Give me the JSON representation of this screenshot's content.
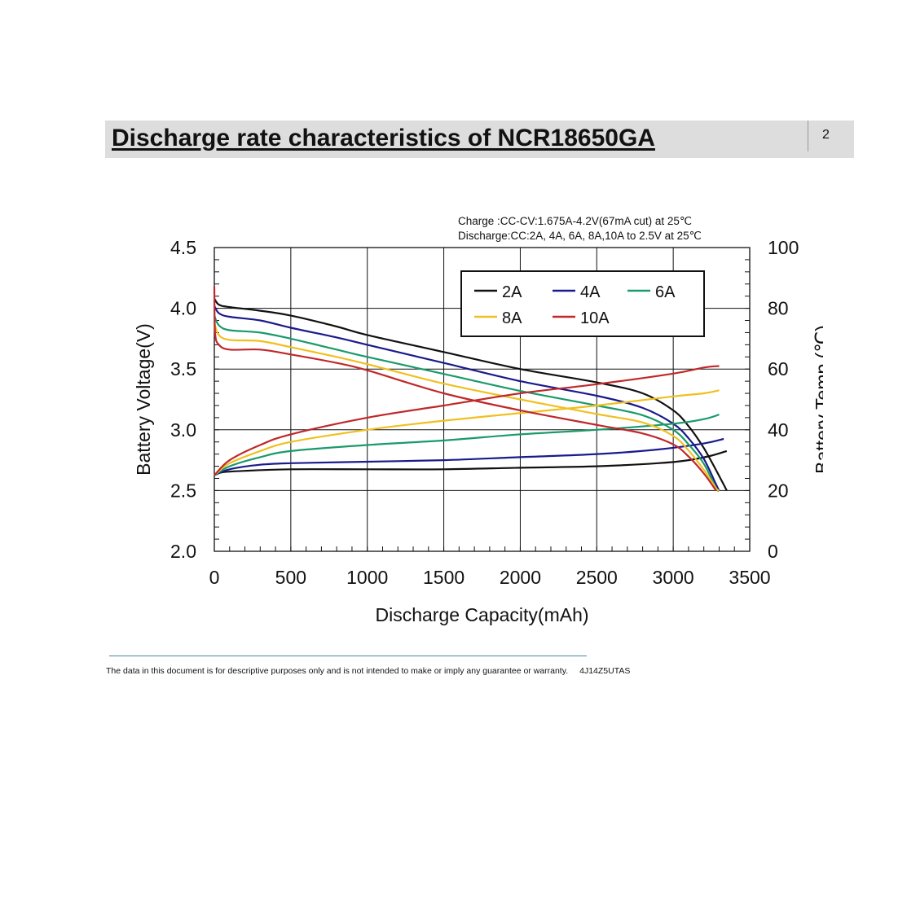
{
  "header": {
    "title": "Discharge rate characteristics of NCR18650GA",
    "page_number": "2"
  },
  "footer": {
    "disclaimer": "The data in this document is for descriptive purposes only and is not intended to make or imply any guarantee or warranty.",
    "code": "4J14Z5UTAS"
  },
  "chart_data": {
    "type": "line",
    "annotation": [
      "Charge :CC-CV:1.675A-4.2V(67mA cut) at 25℃",
      "Discharge:CC:2A, 4A, 6A, 8A,10A to 2.5V at 25℃"
    ],
    "xlabel": "Discharge Capacity(mAh)",
    "ylabel": "Battery Voltage(V)",
    "y2label": "Battery Temp.(℃)",
    "xlim": [
      0,
      3500
    ],
    "ylim": [
      2.0,
      4.5
    ],
    "y2lim": [
      0,
      100
    ],
    "xticks": [
      0,
      500,
      1000,
      1500,
      2000,
      2500,
      3000,
      3500
    ],
    "yticks": [
      2.0,
      2.5,
      3.0,
      3.5,
      4.0,
      4.5
    ],
    "yticklabels": [
      "2.0",
      "2.5",
      "3.0",
      "3.5",
      "4.0",
      "4.5"
    ],
    "y2ticks": [
      0,
      20,
      40,
      60,
      80,
      100
    ],
    "grid": true,
    "legend_position": "top-right",
    "series": [
      {
        "name": "2A",
        "color": "#111111",
        "voltage": [
          [
            0,
            4.08
          ],
          [
            30,
            4.03
          ],
          [
            100,
            4.01
          ],
          [
            300,
            3.98
          ],
          [
            500,
            3.94
          ],
          [
            800,
            3.85
          ],
          [
            1000,
            3.78
          ],
          [
            1500,
            3.64
          ],
          [
            2000,
            3.5
          ],
          [
            2500,
            3.39
          ],
          [
            2800,
            3.3
          ],
          [
            3000,
            3.16
          ],
          [
            3100,
            3.03
          ],
          [
            3200,
            2.85
          ],
          [
            3300,
            2.62
          ],
          [
            3350,
            2.5
          ]
        ],
        "temperature": [
          [
            0,
            25
          ],
          [
            50,
            26
          ],
          [
            200,
            26.5
          ],
          [
            500,
            27
          ],
          [
            1000,
            27
          ],
          [
            1500,
            27
          ],
          [
            2000,
            27.5
          ],
          [
            2500,
            28
          ],
          [
            2900,
            29
          ],
          [
            3100,
            30
          ],
          [
            3250,
            31.5
          ],
          [
            3350,
            33
          ]
        ]
      },
      {
        "name": "4A",
        "color": "#1a1a8c",
        "voltage": [
          [
            0,
            4.02
          ],
          [
            30,
            3.96
          ],
          [
            100,
            3.93
          ],
          [
            300,
            3.9
          ],
          [
            500,
            3.84
          ],
          [
            800,
            3.76
          ],
          [
            1000,
            3.7
          ],
          [
            1500,
            3.55
          ],
          [
            2000,
            3.4
          ],
          [
            2500,
            3.28
          ],
          [
            2800,
            3.18
          ],
          [
            3000,
            3.05
          ],
          [
            3100,
            2.93
          ],
          [
            3200,
            2.76
          ],
          [
            3280,
            2.55
          ],
          [
            3300,
            2.5
          ]
        ],
        "temperature": [
          [
            0,
            25
          ],
          [
            100,
            27
          ],
          [
            300,
            28.5
          ],
          [
            500,
            29
          ],
          [
            1000,
            29.5
          ],
          [
            1500,
            30
          ],
          [
            2000,
            31
          ],
          [
            2500,
            32
          ],
          [
            2900,
            33.5
          ],
          [
            3200,
            35.5
          ],
          [
            3330,
            37
          ]
        ]
      },
      {
        "name": "6A",
        "color": "#1a9a6a",
        "voltage": [
          [
            0,
            3.94
          ],
          [
            30,
            3.86
          ],
          [
            100,
            3.82
          ],
          [
            300,
            3.8
          ],
          [
            500,
            3.75
          ],
          [
            800,
            3.66
          ],
          [
            1000,
            3.6
          ],
          [
            1500,
            3.46
          ],
          [
            2000,
            3.32
          ],
          [
            2500,
            3.2
          ],
          [
            2800,
            3.12
          ],
          [
            3000,
            3.0
          ],
          [
            3100,
            2.88
          ],
          [
            3200,
            2.72
          ],
          [
            3280,
            2.52
          ],
          [
            3300,
            2.5
          ]
        ],
        "temperature": [
          [
            0,
            25
          ],
          [
            100,
            28
          ],
          [
            300,
            31
          ],
          [
            500,
            33
          ],
          [
            1000,
            35
          ],
          [
            1500,
            36.5
          ],
          [
            2000,
            38.5
          ],
          [
            2500,
            40
          ],
          [
            3000,
            42
          ],
          [
            3200,
            43.5
          ],
          [
            3300,
            45
          ]
        ]
      },
      {
        "name": "8A",
        "color": "#f0c020",
        "voltage": [
          [
            0,
            3.88
          ],
          [
            30,
            3.78
          ],
          [
            100,
            3.74
          ],
          [
            300,
            3.73
          ],
          [
            500,
            3.68
          ],
          [
            800,
            3.6
          ],
          [
            1000,
            3.54
          ],
          [
            1500,
            3.38
          ],
          [
            2000,
            3.25
          ],
          [
            2500,
            3.13
          ],
          [
            2800,
            3.06
          ],
          [
            3000,
            2.95
          ],
          [
            3100,
            2.83
          ],
          [
            3200,
            2.67
          ],
          [
            3280,
            2.52
          ],
          [
            3300,
            2.5
          ]
        ],
        "temperature": [
          [
            0,
            25
          ],
          [
            100,
            29
          ],
          [
            300,
            33
          ],
          [
            500,
            36
          ],
          [
            1000,
            40
          ],
          [
            1500,
            43
          ],
          [
            2000,
            45.5
          ],
          [
            2500,
            48
          ],
          [
            3000,
            51
          ],
          [
            3200,
            52
          ],
          [
            3300,
            53
          ]
        ]
      },
      {
        "name": "10A",
        "color": "#c0282a",
        "voltage": [
          [
            0,
            4.18
          ],
          [
            5,
            3.8
          ],
          [
            30,
            3.7
          ],
          [
            100,
            3.66
          ],
          [
            300,
            3.66
          ],
          [
            500,
            3.62
          ],
          [
            800,
            3.55
          ],
          [
            1000,
            3.49
          ],
          [
            1500,
            3.3
          ],
          [
            2000,
            3.16
          ],
          [
            2500,
            3.04
          ],
          [
            2800,
            2.97
          ],
          [
            3000,
            2.88
          ],
          [
            3100,
            2.78
          ],
          [
            3200,
            2.64
          ],
          [
            3280,
            2.5
          ]
        ],
        "temperature": [
          [
            0,
            25
          ],
          [
            100,
            30
          ],
          [
            300,
            35
          ],
          [
            500,
            38.5
          ],
          [
            1000,
            44
          ],
          [
            1500,
            48
          ],
          [
            2000,
            52
          ],
          [
            2500,
            55
          ],
          [
            3000,
            58.5
          ],
          [
            3200,
            60.5
          ],
          [
            3300,
            61
          ]
        ]
      }
    ]
  }
}
